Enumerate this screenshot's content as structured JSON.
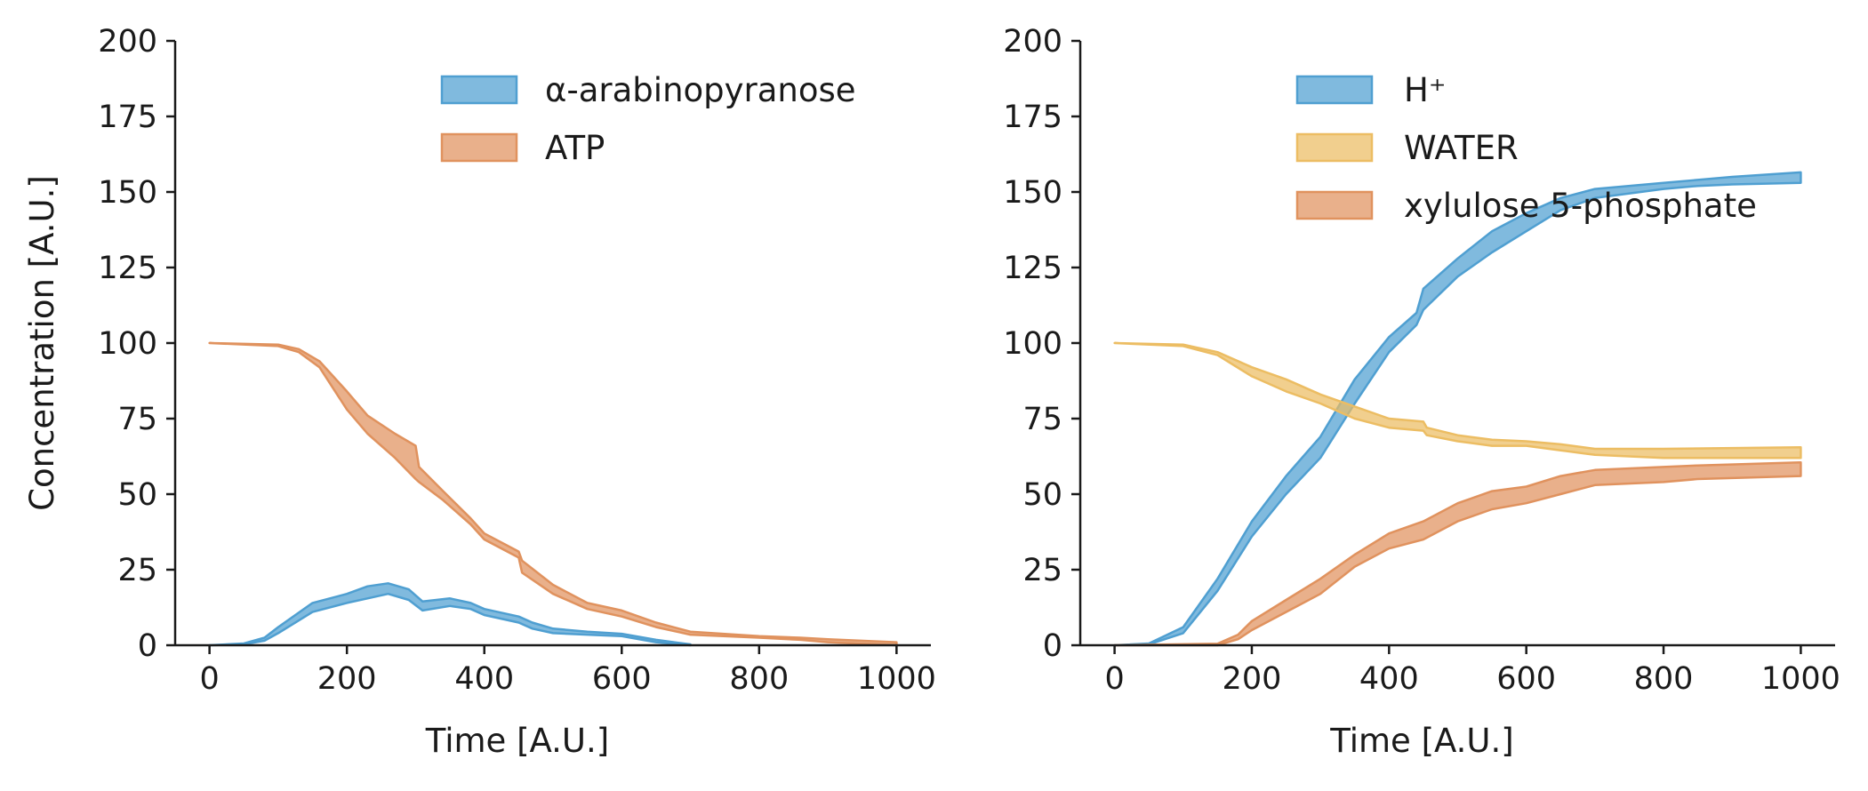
{
  "colors": {
    "blue": "#4f9fd1",
    "orange": "#e0925e",
    "yellow": "#ecbd63",
    "axis": "#1a1a1a"
  },
  "chart_data": [
    {
      "type": "area",
      "title": "",
      "xlabel": "Time [A.U.]",
      "ylabel": "Concentration [A.U.]",
      "xlim": [
        -50,
        1050
      ],
      "ylim": [
        0,
        200
      ],
      "xticks": [
        0,
        200,
        400,
        600,
        800,
        1000
      ],
      "yticks": [
        0,
        25,
        50,
        75,
        100,
        125,
        150,
        175,
        200
      ],
      "grid": false,
      "legend_position": "top-right",
      "series": [
        {
          "name": "α-arabinopyranose",
          "color": "#4f9fd1",
          "x": [
            0,
            50,
            80,
            100,
            150,
            200,
            230,
            260,
            290,
            310,
            350,
            380,
            400,
            450,
            470,
            500,
            550,
            600,
            650,
            700
          ],
          "lower": [
            0,
            0.3,
            1.5,
            4,
            11,
            14,
            15.5,
            17,
            15,
            11.5,
            13,
            12,
            10,
            7.5,
            5.5,
            4,
            3.5,
            3,
            1,
            0
          ],
          "upper": [
            0,
            0.6,
            2.5,
            6,
            14,
            17,
            19.5,
            20.5,
            18.5,
            14.5,
            15.5,
            14,
            12,
            9.5,
            7.5,
            5.5,
            4.5,
            3.8,
            1.8,
            0.3
          ]
        },
        {
          "name": "ATP",
          "color": "#e0925e",
          "x": [
            0,
            100,
            130,
            160,
            200,
            230,
            270,
            300,
            305,
            340,
            380,
            400,
            450,
            455,
            500,
            550,
            600,
            650,
            700,
            800,
            860,
            900,
            1000
          ],
          "lower": [
            100,
            99,
            97,
            92,
            78,
            70,
            62,
            55,
            54,
            48,
            40,
            35,
            29,
            24,
            17,
            12,
            9.5,
            6,
            3.5,
            2.5,
            1.8,
            1,
            0
          ],
          "upper": [
            100,
            99.5,
            98,
            94,
            84,
            76,
            70,
            66,
            59,
            51,
            42,
            37,
            31,
            28,
            20,
            14,
            11.5,
            7.5,
            4.5,
            3,
            2.5,
            2,
            1
          ]
        }
      ]
    },
    {
      "type": "area",
      "title": "",
      "xlabel": "Time [A.U.]",
      "ylabel": "",
      "xlim": [
        -50,
        1050
      ],
      "ylim": [
        0,
        200
      ],
      "xticks": [
        0,
        200,
        400,
        600,
        800,
        1000
      ],
      "yticks": [
        0,
        25,
        50,
        75,
        100,
        125,
        150,
        175,
        200
      ],
      "grid": false,
      "legend_position": "top-right",
      "series": [
        {
          "name": "H⁺",
          "color": "#4f9fd1",
          "x": [
            0,
            50,
            100,
            150,
            200,
            250,
            300,
            350,
            400,
            440,
            450,
            500,
            550,
            600,
            650,
            700,
            800,
            850,
            900,
            1000
          ],
          "lower": [
            0,
            0.3,
            4,
            18,
            36,
            50,
            62,
            80,
            97,
            106,
            111,
            122,
            130,
            137,
            144,
            148,
            151,
            152,
            152.5,
            153
          ],
          "upper": [
            0,
            0.6,
            6,
            22,
            41,
            56,
            69,
            88,
            102,
            110,
            118,
            128,
            137,
            143,
            148,
            151,
            153,
            154,
            155,
            156.5
          ]
        },
        {
          "name": "WATER",
          "color": "#ecbd63",
          "x": [
            0,
            100,
            150,
            200,
            250,
            300,
            350,
            400,
            450,
            455,
            500,
            550,
            600,
            650,
            700,
            800,
            1000
          ],
          "lower": [
            100,
            99,
            96,
            89,
            84,
            80,
            75,
            72,
            71,
            69.5,
            67.5,
            66,
            66,
            64.5,
            63,
            62,
            62
          ],
          "upper": [
            100,
            99.5,
            97,
            92,
            88,
            83,
            79,
            75,
            74,
            72,
            69.5,
            68,
            67.5,
            66.5,
            65,
            65,
            65.5
          ]
        },
        {
          "name": "xylulose 5-phosphate",
          "color": "#e0925e",
          "x": [
            0,
            150,
            180,
            200,
            250,
            300,
            350,
            400,
            450,
            500,
            550,
            600,
            650,
            700,
            800,
            850,
            1000
          ],
          "lower": [
            0,
            0,
            2,
            5,
            11,
            17,
            26,
            32,
            35,
            41,
            45,
            47,
            50,
            53,
            54,
            55,
            56
          ],
          "upper": [
            0,
            0.5,
            3.5,
            8,
            15,
            22,
            30,
            37,
            41,
            47,
            51,
            52.5,
            56,
            58,
            59,
            59.5,
            60.5
          ]
        }
      ]
    }
  ]
}
